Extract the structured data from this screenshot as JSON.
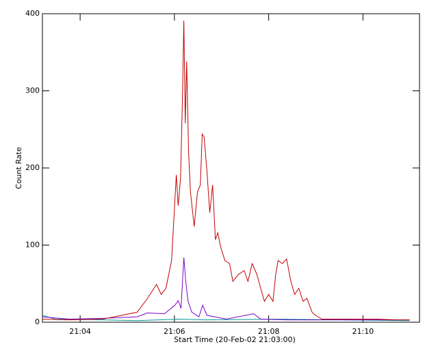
{
  "chart_data": {
    "type": "line",
    "xlabel": "Start Time (20-Feb-02 21:03:00)",
    "ylabel": "Count Rate",
    "xlim": [
      0.2,
      8.2
    ],
    "xticks": [
      {
        "value": 1,
        "label": "21:04"
      },
      {
        "value": 3,
        "label": "21:06"
      },
      {
        "value": 5,
        "label": "21:08"
      },
      {
        "value": 7,
        "label": "21:10"
      }
    ],
    "ylim": [
      0,
      400
    ],
    "yticks": [
      0,
      100,
      200,
      300,
      400
    ],
    "series": [
      {
        "color": "#c00000",
        "x": [
          0.2,
          0.76,
          1.48,
          2.21,
          2.43,
          2.62,
          2.72,
          2.82,
          2.94,
          3.04,
          3.08,
          3.13,
          3.17,
          3.2,
          3.23,
          3.26,
          3.3,
          3.34,
          3.42,
          3.49,
          3.55,
          3.59,
          3.63,
          3.69,
          3.75,
          3.81,
          3.87,
          3.92,
          3.98,
          4.07,
          4.17,
          4.24,
          4.36,
          4.48,
          4.56,
          4.65,
          4.75,
          4.83,
          4.91,
          5.0,
          5.09,
          5.15,
          5.2,
          5.29,
          5.38,
          5.47,
          5.55,
          5.64,
          5.73,
          5.81,
          5.92,
          5.99,
          6.13,
          6.57,
          7.3,
          7.73,
          7.99
        ],
        "values": [
          4,
          3,
          4,
          13,
          31,
          49,
          36,
          44,
          80,
          191,
          151,
          187,
          289,
          391,
          258,
          338,
          222,
          169,
          124,
          169,
          178,
          244,
          240,
          196,
          142,
          178,
          107,
          116,
          98,
          80,
          76,
          53,
          62,
          67,
          53,
          76,
          62,
          44,
          27,
          36,
          27,
          62,
          80,
          76,
          82,
          53,
          36,
          44,
          27,
          31,
          13,
          9,
          4,
          4,
          4,
          3,
          3
        ]
      },
      {
        "color": "#7a00c8",
        "x": [
          0.2,
          0.76,
          1.48,
          2.21,
          2.43,
          2.79,
          3.01,
          3.08,
          3.14,
          3.2,
          3.24,
          3.29,
          3.37,
          3.52,
          3.6,
          3.69,
          4.1,
          4.68,
          4.83,
          5.41,
          6.57,
          7.99
        ],
        "values": [
          7,
          4,
          5,
          7,
          12,
          11,
          22,
          28,
          18,
          84,
          53,
          27,
          13,
          7,
          22,
          9,
          4,
          11,
          4,
          3,
          3,
          3
        ]
      },
      {
        "color": "#009999",
        "x": [
          0.2,
          0.47,
          1.48,
          2.21,
          3.08,
          3.66,
          5.12,
          6.57,
          7.99
        ],
        "values": [
          9,
          4,
          3,
          2,
          4,
          3,
          4,
          3,
          2
        ]
      }
    ]
  }
}
